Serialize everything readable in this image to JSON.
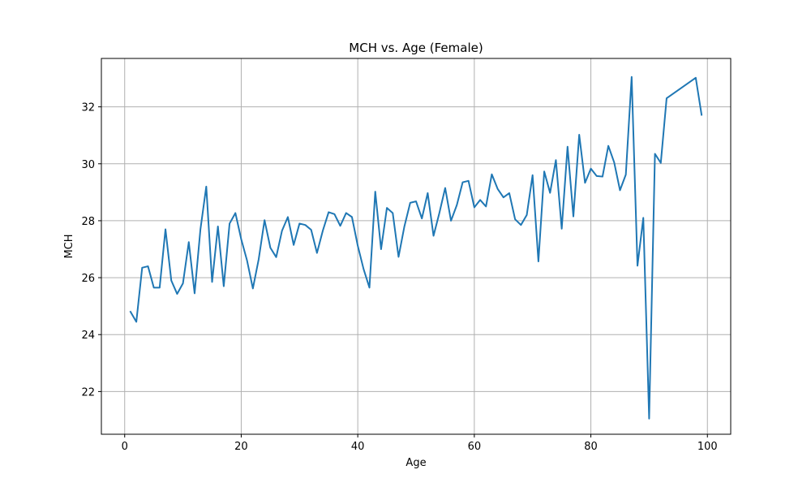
{
  "chart_data": {
    "type": "line",
    "title": "MCH vs. Age (Female)",
    "xlabel": "Age",
    "ylabel": "MCH",
    "xlim": [
      -4,
      104
    ],
    "ylim": [
      20.5,
      33.7
    ],
    "x_ticks": [
      0,
      20,
      40,
      60,
      80,
      100
    ],
    "y_ticks": [
      22,
      24,
      26,
      28,
      30,
      32
    ],
    "x_tick_labels": [
      "0",
      "20",
      "40",
      "60",
      "80",
      "100"
    ],
    "y_tick_labels": [
      "22",
      "24",
      "26",
      "28",
      "30",
      "32"
    ],
    "grid": true,
    "legend": "none",
    "line_color": "#1f77b4",
    "series": [
      {
        "x": [
          1,
          2,
          3,
          4,
          5,
          6,
          7,
          8,
          9,
          10,
          11,
          12,
          13,
          14,
          15,
          16,
          17,
          18,
          19,
          20,
          21,
          22,
          23,
          24,
          25,
          26,
          27,
          28,
          29,
          30,
          31,
          32,
          33,
          34,
          35,
          36,
          37,
          38,
          39,
          40,
          41,
          42,
          43,
          44,
          45,
          46,
          47,
          48,
          49,
          50,
          51,
          52,
          53,
          54,
          55,
          56,
          57,
          58,
          59,
          60,
          61,
          62,
          63,
          64,
          65,
          66,
          67,
          68,
          69,
          70,
          71,
          72,
          73,
          74,
          75,
          76,
          77,
          78,
          79,
          80,
          81,
          82,
          83,
          84,
          85,
          86,
          87,
          88,
          89,
          90,
          91,
          92,
          93,
          98,
          99
        ],
        "y": [
          24.8,
          24.45,
          26.35,
          26.4,
          25.65,
          25.65,
          27.7,
          25.9,
          25.43,
          25.8,
          27.25,
          25.45,
          27.7,
          29.2,
          25.85,
          27.8,
          25.7,
          27.9,
          28.27,
          27.35,
          26.6,
          25.62,
          26.65,
          28.02,
          27.05,
          26.72,
          27.65,
          28.13,
          27.15,
          27.9,
          27.85,
          27.68,
          26.87,
          27.65,
          28.3,
          28.23,
          27.82,
          28.27,
          28.13,
          27.12,
          26.3,
          25.65,
          29.02,
          27.0,
          28.45,
          28.27,
          26.73,
          27.8,
          28.63,
          28.68,
          28.08,
          28.97,
          27.47,
          28.27,
          29.15,
          28.0,
          28.55,
          29.35,
          29.4,
          28.47,
          28.73,
          28.5,
          29.63,
          29.12,
          28.82,
          28.97,
          28.05,
          27.85,
          28.2,
          29.6,
          26.57,
          29.73,
          28.98,
          30.13,
          27.72,
          30.6,
          28.15,
          31.02,
          29.33,
          29.83,
          29.57,
          29.55,
          30.63,
          30.05,
          29.07,
          29.62,
          33.05,
          26.42,
          28.1,
          21.05,
          30.35,
          30.03,
          32.3,
          33.02,
          31.72
        ]
      }
    ]
  }
}
